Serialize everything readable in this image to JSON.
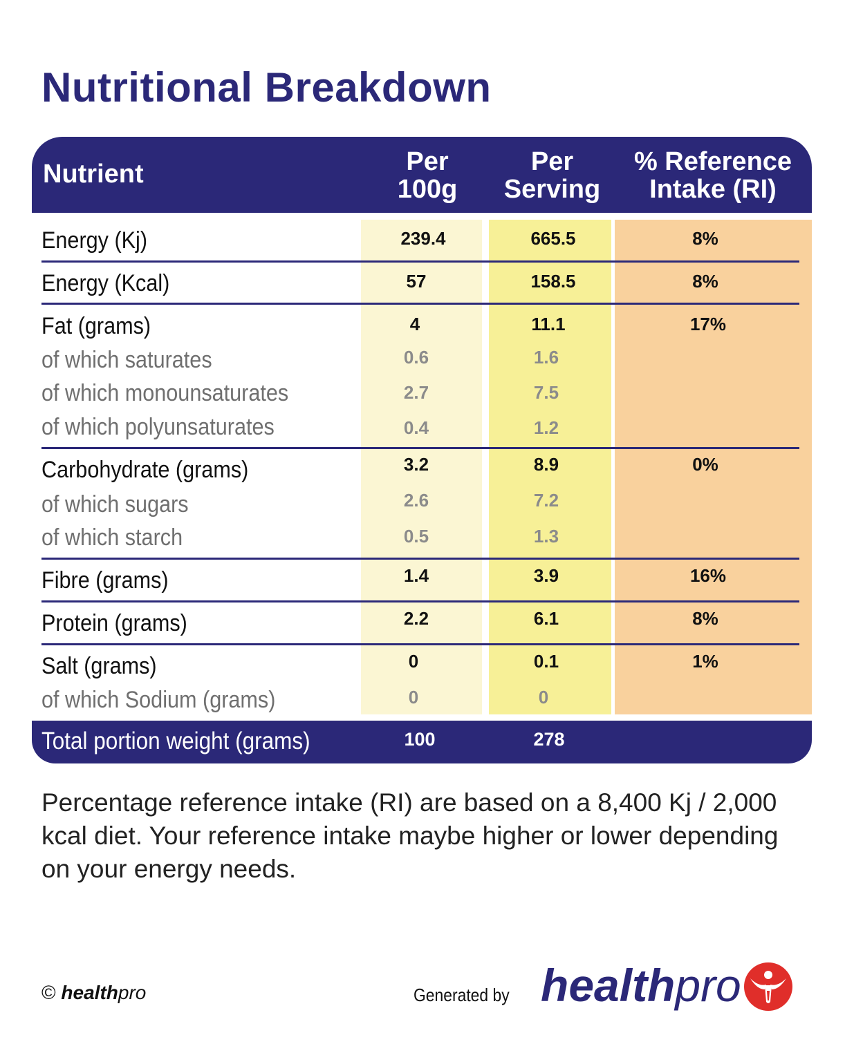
{
  "title": "Nutritional Breakdown",
  "header": {
    "nutrient": "Nutrient",
    "per100_line1": "Per",
    "per100_line2": "100g",
    "serving_line1": "Per",
    "serving_line2": "Serving",
    "ri_line1": "% Reference",
    "ri_line2": "Intake (RI)"
  },
  "rows": [
    {
      "label": "Energy (Kj)",
      "per100": "239.4",
      "serving": "665.5",
      "ri": "8%"
    },
    {
      "label": "Energy (Kcal)",
      "per100": "57",
      "serving": "158.5",
      "ri": "8%"
    },
    {
      "label": "Fat (grams)",
      "per100": "4",
      "serving": "11.1",
      "ri": "17%"
    },
    {
      "label": "of which saturates",
      "per100": "0.6",
      "serving": "1.6"
    },
    {
      "label": "of which monounsaturates",
      "per100": "2.7",
      "serving": "7.5"
    },
    {
      "label": "of which polyunsaturates",
      "per100": "0.4",
      "serving": "1.2"
    },
    {
      "label": "Carbohydrate (grams)",
      "per100": "3.2",
      "serving": "8.9",
      "ri": "0%"
    },
    {
      "label": "of which sugars",
      "per100": "2.6",
      "serving": "7.2"
    },
    {
      "label": "of which starch",
      "per100": "0.5",
      "serving": "1.3"
    },
    {
      "label": "Fibre (grams)",
      "per100": "1.4",
      "serving": "3.9",
      "ri": "16%"
    },
    {
      "label": "Protein (grams)",
      "per100": "2.2",
      "serving": "6.1",
      "ri": "8%"
    },
    {
      "label": "Salt (grams)",
      "per100": "0",
      "serving": "0.1",
      "ri": "1%"
    },
    {
      "label": "of which Sodium (grams)",
      "per100": "0",
      "serving": "0"
    }
  ],
  "total": {
    "label": "Total portion weight (grams)",
    "per100": "100",
    "serving": "278"
  },
  "note": "Percentage reference intake (RI) are based on a 8,400 Kj / 2,000 kcal diet. Your reference intake maybe higher or lower depending on your energy needs.",
  "footer": {
    "copyright_symbol": "©",
    "copyright_brand_bold": "health",
    "copyright_brand_light": "pro",
    "generated_by": "Generated by",
    "logo_bold": "health",
    "logo_light": "pro",
    "logo_icon": "healthpro-figure-icon"
  },
  "colors": {
    "navy": "#2b2878",
    "per100_bg": "#fbf6d3",
    "serving_bg": "#f7f097",
    "ri_bg": "#f9d19d",
    "logo_red": "#e02e2a"
  }
}
